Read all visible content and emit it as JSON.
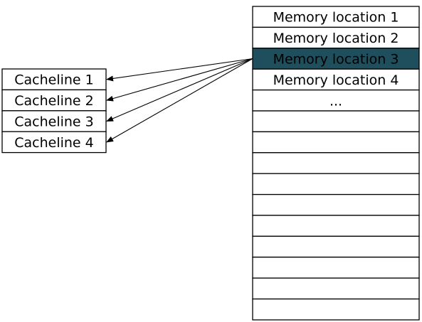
{
  "cachelines": [
    {
      "label": "Cacheline 1"
    },
    {
      "label": "Cacheline 2"
    },
    {
      "label": "Cacheline 3"
    },
    {
      "label": "Cacheline 4"
    }
  ],
  "memory": {
    "rows": [
      {
        "label": "Memory location 1"
      },
      {
        "label": "Memory location 2"
      },
      {
        "label": "Memory location 3",
        "highlighted": true
      },
      {
        "label": "Memory location 4"
      },
      {
        "label": "..."
      },
      {
        "label": ""
      },
      {
        "label": ""
      },
      {
        "label": ""
      },
      {
        "label": ""
      },
      {
        "label": ""
      },
      {
        "label": ""
      },
      {
        "label": ""
      },
      {
        "label": ""
      },
      {
        "label": ""
      },
      {
        "label": ""
      }
    ]
  },
  "mapping": {
    "source_row": 2,
    "targets": [
      0,
      1,
      2,
      3
    ]
  },
  "colors": {
    "highlight_fill": "#1f4e5c",
    "border": "#000000",
    "background": "#ffffff",
    "arrow": "#000000"
  }
}
